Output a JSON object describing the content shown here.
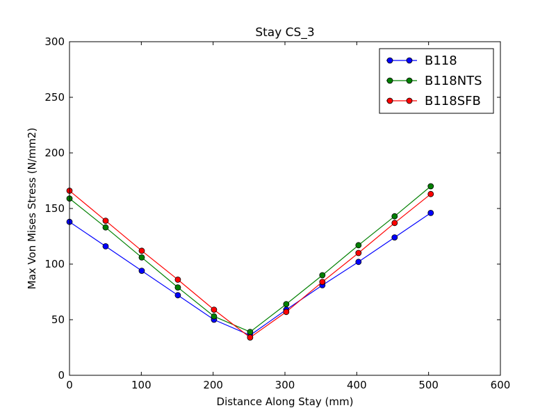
{
  "chart_data": {
    "type": "line",
    "title": "Stay CS_3",
    "xlabel": "Distance Along Stay (mm)",
    "ylabel": "Max Von Mises Stress (N/mm2)",
    "xlim": [
      0,
      600
    ],
    "ylim": [
      0,
      300
    ],
    "xticks": [
      0,
      100,
      200,
      300,
      400,
      500,
      600
    ],
    "yticks": [
      0,
      50,
      100,
      150,
      200,
      250,
      300
    ],
    "x": [
      0,
      50.3,
      100.6,
      150.9,
      201.2,
      251.5,
      301.8,
      352.1,
      402.4,
      452.7,
      503.0
    ],
    "grid": false,
    "legend_position": "top-right",
    "series": [
      {
        "name": "B118",
        "color": "#0000ff",
        "values": [
          138,
          116,
          94,
          72,
          50,
          36,
          59,
          81,
          102,
          124,
          146
        ]
      },
      {
        "name": "B118NTS",
        "color": "#008000",
        "values": [
          159,
          133,
          106,
          79,
          53,
          39,
          64,
          90,
          117,
          143,
          170
        ]
      },
      {
        "name": "B118SFB",
        "color": "#ff0000",
        "values": [
          166,
          139,
          112,
          86,
          59,
          34,
          57,
          84,
          110,
          137,
          163
        ]
      }
    ]
  }
}
